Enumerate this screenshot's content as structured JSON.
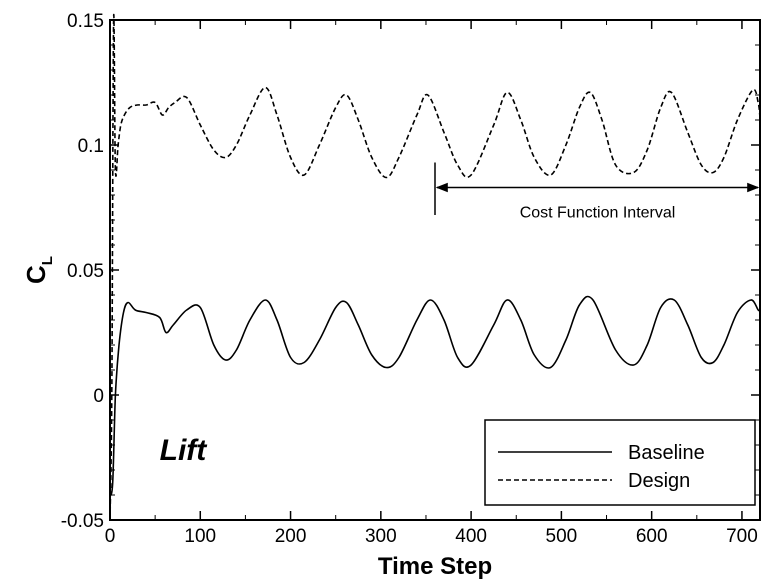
{
  "chart_data": {
    "type": "line",
    "title": "",
    "xlabel": "Time Step",
    "ylabel_main": "C",
    "ylabel_sub": "L",
    "xlim": [
      0,
      720
    ],
    "ylim": [
      -0.05,
      0.15
    ],
    "xticks": [
      0,
      100,
      200,
      300,
      400,
      500,
      600,
      700
    ],
    "xtick_labels": [
      "0",
      "100",
      "200",
      "300",
      "400",
      "500",
      "600",
      "700"
    ],
    "yticks": [
      -0.05,
      0,
      0.05,
      0.1,
      0.15
    ],
    "ytick_labels": [
      "-0.05",
      "0",
      "0.05",
      "0.1",
      "0.15"
    ],
    "grid": false,
    "legend_position": "bottom-right",
    "series": [
      {
        "name": "Baseline",
        "style": "solid",
        "x": [
          0,
          3,
          6,
          10,
          15,
          20,
          28,
          40,
          55,
          62,
          70,
          85,
          100,
          115,
          128,
          140,
          155,
          172,
          185,
          200,
          215,
          232,
          250,
          262,
          275,
          290,
          306,
          320,
          340,
          355,
          370,
          385,
          400,
          425,
          440,
          455,
          470,
          488,
          505,
          520,
          535,
          560,
          580,
          595,
          610,
          625,
          640,
          655,
          668,
          680,
          695,
          710,
          718,
          720
        ],
        "y": [
          -0.04,
          -0.035,
          0.0,
          0.02,
          0.033,
          0.037,
          0.034,
          0.033,
          0.031,
          0.025,
          0.028,
          0.034,
          0.035,
          0.02,
          0.014,
          0.018,
          0.03,
          0.038,
          0.03,
          0.015,
          0.013,
          0.022,
          0.035,
          0.037,
          0.028,
          0.016,
          0.011,
          0.015,
          0.03,
          0.038,
          0.03,
          0.015,
          0.012,
          0.028,
          0.038,
          0.03,
          0.016,
          0.011,
          0.022,
          0.036,
          0.038,
          0.018,
          0.012,
          0.02,
          0.035,
          0.038,
          0.028,
          0.015,
          0.013,
          0.02,
          0.033,
          0.038,
          0.034,
          0.034
        ]
      },
      {
        "name": "Design",
        "style": "dashed",
        "x": [
          0,
          2,
          4,
          6,
          9,
          12,
          16,
          22,
          30,
          40,
          50,
          58,
          65,
          72,
          85,
          100,
          115,
          128,
          140,
          155,
          172,
          185,
          200,
          215,
          232,
          250,
          262,
          275,
          290,
          306,
          320,
          340,
          352,
          370,
          385,
          400,
          425,
          440,
          455,
          470,
          488,
          505,
          520,
          532,
          545,
          560,
          580,
          595,
          610,
          622,
          640,
          655,
          668,
          680,
          695,
          712,
          718,
          720
        ],
        "y": [
          -0.05,
          0.0,
          0.15,
          0.09,
          0.1,
          0.108,
          0.112,
          0.115,
          0.116,
          0.116,
          0.117,
          0.112,
          0.115,
          0.117,
          0.119,
          0.108,
          0.098,
          0.095,
          0.1,
          0.112,
          0.123,
          0.112,
          0.095,
          0.088,
          0.1,
          0.115,
          0.12,
          0.11,
          0.095,
          0.087,
          0.095,
          0.112,
          0.12,
          0.105,
          0.092,
          0.088,
          0.108,
          0.121,
          0.11,
          0.095,
          0.088,
          0.1,
          0.115,
          0.121,
          0.11,
          0.092,
          0.089,
          0.098,
          0.115,
          0.121,
          0.105,
          0.092,
          0.089,
          0.095,
          0.11,
          0.122,
          0.117,
          0.111
        ]
      }
    ],
    "annotations": [
      {
        "text": "Cost Function Interval",
        "x_start": 360,
        "x_end": 720,
        "y": 0.083,
        "marker_x": 360,
        "marker_y_range": [
          0.072,
          0.093
        ]
      },
      {
        "text": "Lift",
        "x": 55,
        "y": -0.022
      }
    ],
    "legend": {
      "entries": [
        "Baseline",
        "Design"
      ]
    }
  }
}
